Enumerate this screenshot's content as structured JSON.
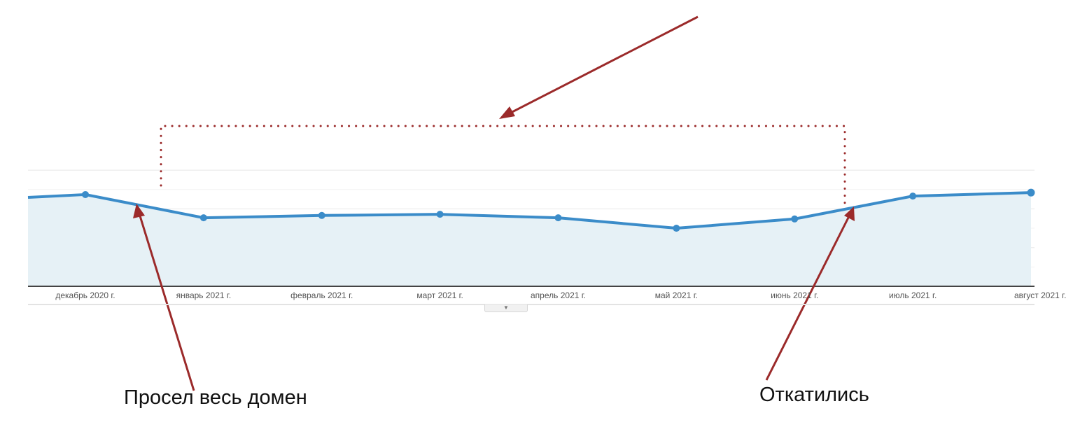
{
  "chart_data": {
    "type": "area",
    "categories": [
      "",
      "декабрь 2020 г.",
      "январь 2021 г.",
      "февраль 2021 г.",
      "март 2021 г.",
      "апрель 2021 г.",
      "май 2021 г.",
      "июнь 2021 г.",
      "июль 2021 г.",
      "август 2021 г."
    ],
    "values": [
      2.22,
      2.37,
      1.77,
      1.83,
      1.86,
      1.77,
      1.5,
      1.74,
      2.33,
      2.42
    ],
    "ylim": [
      0,
      3
    ],
    "grid": true,
    "y_tick_labels_shown": false,
    "colors": {
      "line": "#3b8cc9",
      "fill": "#e6f1f6",
      "axis": "#444444",
      "annotation": "#9b2a2a"
    }
  },
  "annotations": {
    "left_note": "Просел весь домен",
    "right_note": "Откатились"
  },
  "controls": {
    "expand_icon": "▼"
  }
}
